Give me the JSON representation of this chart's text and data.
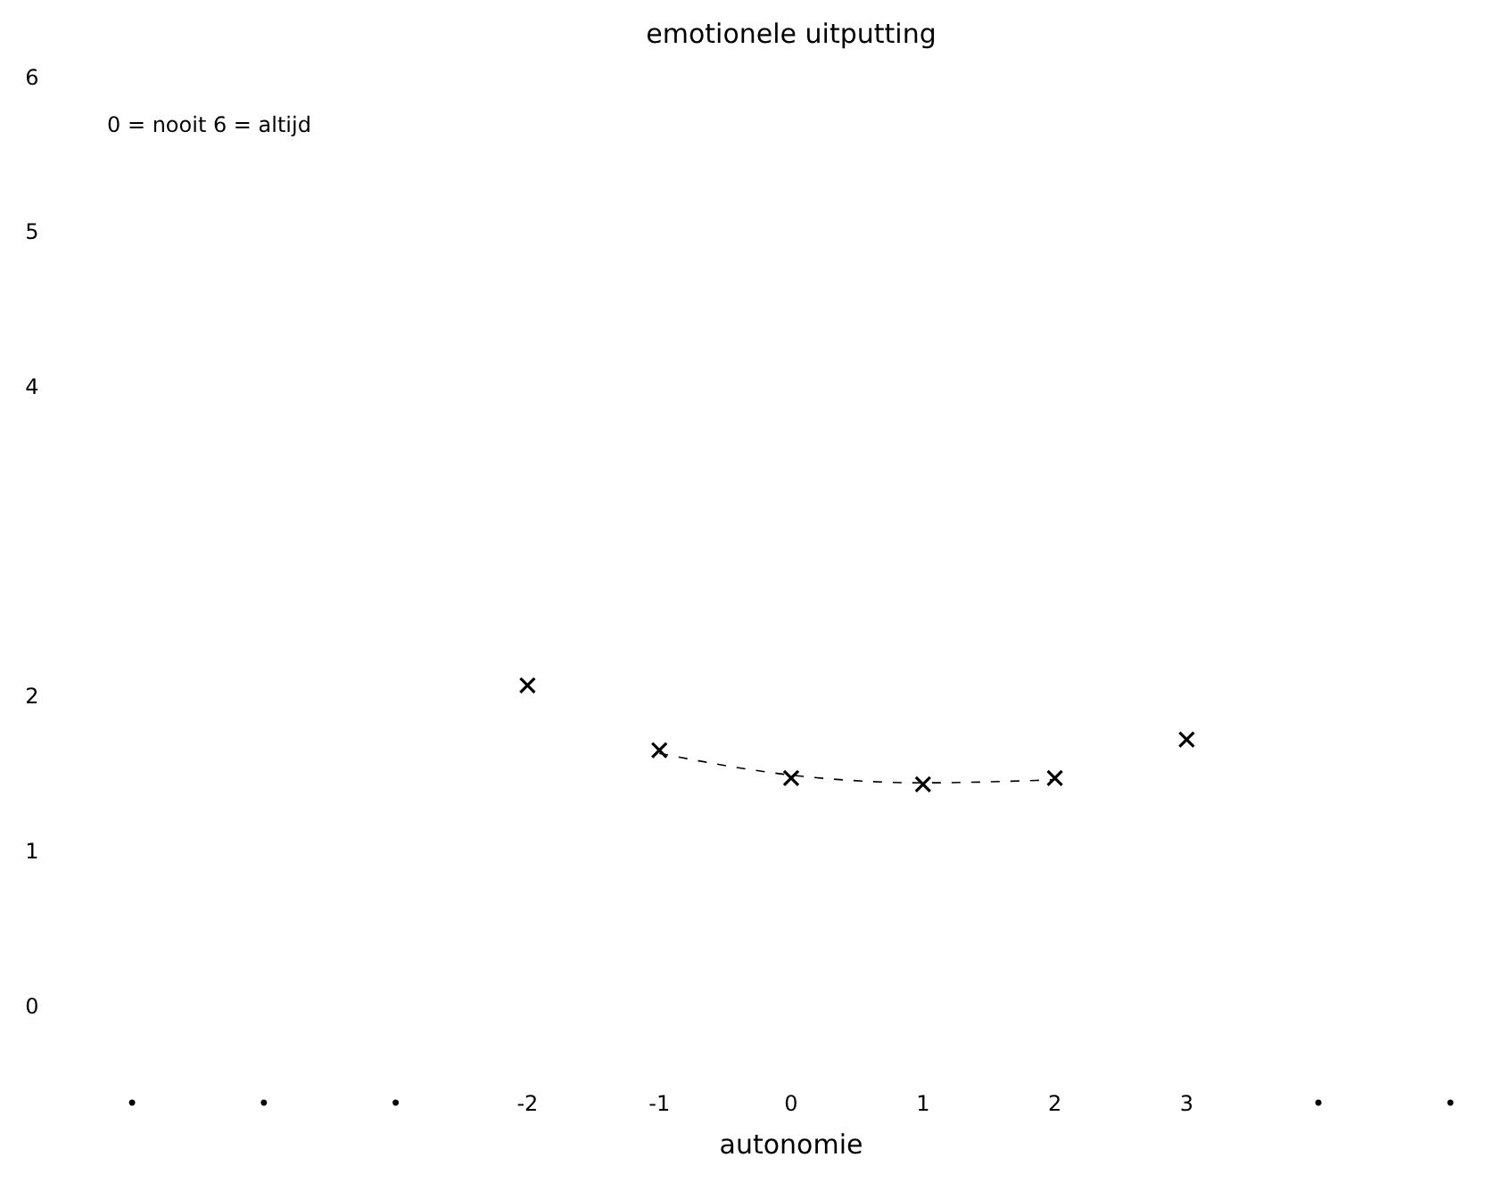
{
  "chart_data": {
    "type": "scatter",
    "title": "emotionele uitputting",
    "xlabel": "autonomie",
    "annotations": [
      "0 = nooit   6 = altijd"
    ],
    "xlim": [
      -5,
      5
    ],
    "xticks": [
      {
        "value": -5,
        "label": "•"
      },
      {
        "value": -4,
        "label": "•"
      },
      {
        "value": -3,
        "label": "•"
      },
      -2,
      -1,
      0,
      1,
      2,
      3,
      {
        "value": 4,
        "label": "•"
      },
      {
        "value": 5,
        "label": "•"
      }
    ],
    "ylim": [
      0,
      6
    ],
    "yticks": [
      0,
      1,
      2,
      4,
      5,
      6
    ],
    "grid": false,
    "series": [
      {
        "type": "scatter",
        "color": "#000000",
        "marker": "cross",
        "x": [
          -2,
          -1,
          0,
          1,
          2,
          3
        ],
        "values": [
          2.08,
          1.66,
          1.48,
          1.44,
          1.48,
          1.73
        ]
      },
      {
        "type": "line",
        "color": "#000000",
        "marker": "none",
        "line_style": "dashed",
        "x": [
          -1,
          0,
          1,
          2
        ],
        "values": [
          1.64,
          1.5,
          1.45,
          1.47
        ]
      }
    ]
  }
}
